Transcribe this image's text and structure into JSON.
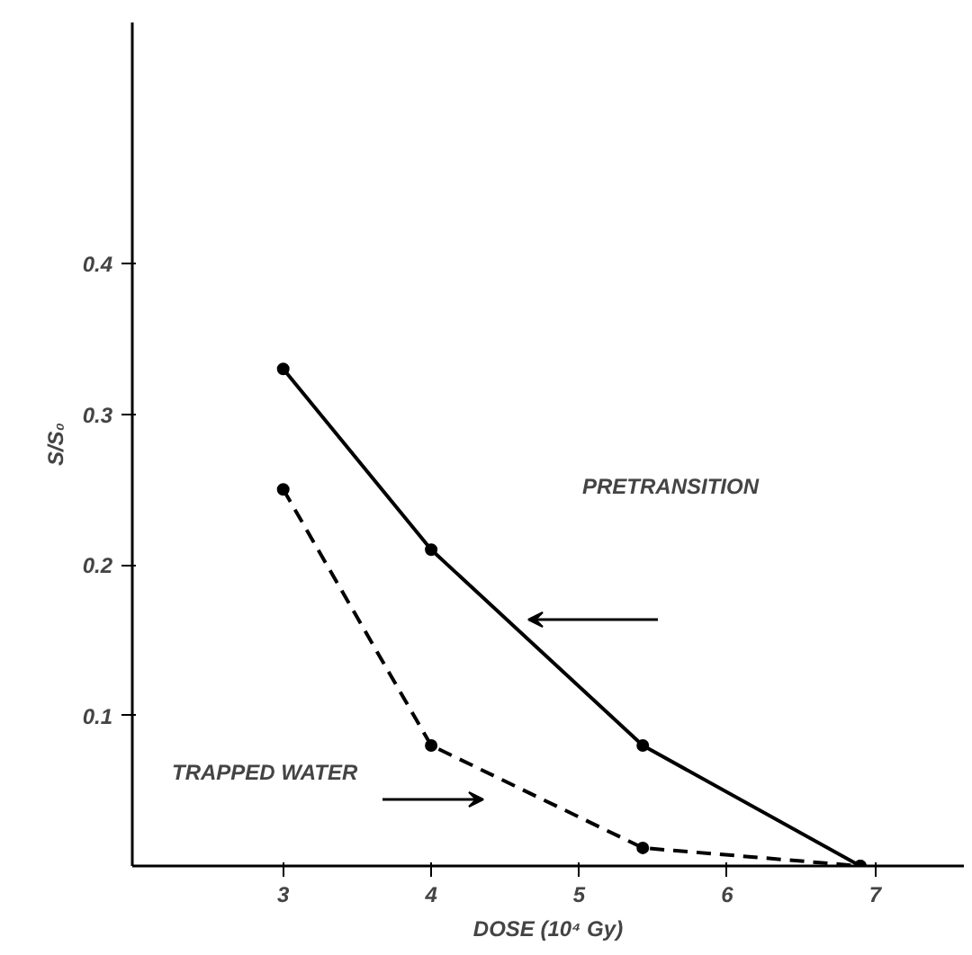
{
  "chart_data": {
    "type": "line",
    "xlabel": "DOSE (10⁴ Gy)",
    "ylabel": "S/S₀",
    "xlim": [
      1.98,
      7.6
    ],
    "ylim": [
      0,
      0.56
    ],
    "xticks": [
      3,
      4,
      5,
      6,
      7
    ],
    "yticks": [
      0.1,
      0.2,
      0.3,
      0.4
    ],
    "grid": false,
    "marker": "circle",
    "series": [
      {
        "color": "#000000",
        "line_style": "solid",
        "x": [
          3,
          4,
          5.43,
          6.9
        ],
        "values": [
          0.33,
          0.21,
          0.08,
          0
        ]
      },
      {
        "color": "#000000",
        "line_style": "dashed",
        "x": [
          3,
          4,
          5.43,
          6.9
        ],
        "values": [
          0.25,
          0.08,
          0.012,
          0
        ]
      }
    ],
    "annotations": [
      "PRETRANSITION",
      "TRAPPED WATER"
    ]
  }
}
